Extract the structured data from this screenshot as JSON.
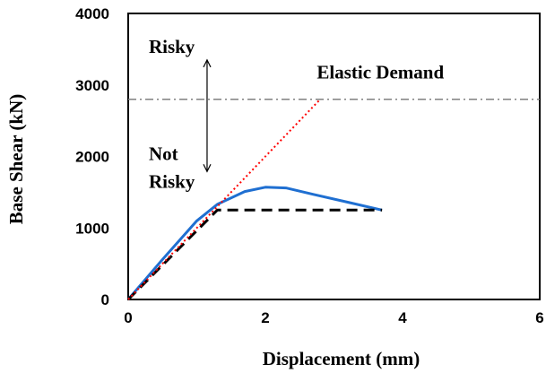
{
  "chart_data": {
    "type": "line",
    "xlabel": "Displacement (mm)",
    "ylabel": "Base Shear (kN)",
    "xlim": [
      0,
      6
    ],
    "ylim": [
      0,
      4000
    ],
    "x_ticks": [
      "0",
      "2",
      "4",
      "6"
    ],
    "y_ticks": [
      "0",
      "1000",
      "2000",
      "3000",
      "4000"
    ],
    "grid": false,
    "series": [
      {
        "color": "#1f6fd1",
        "style": "solid",
        "x": [
          0,
          0.5,
          1.0,
          1.3,
          1.7,
          2.0,
          2.3,
          2.7,
          3.2,
          3.7
        ],
        "y": [
          0,
          560,
          1100,
          1330,
          1510,
          1570,
          1560,
          1470,
          1360,
          1250
        ]
      },
      {
        "color": "#000000",
        "style": "dashed",
        "x": [
          0,
          1.3,
          3.7
        ],
        "y": [
          0,
          1250,
          1250
        ]
      },
      {
        "color": "#ff0000",
        "style": "dotted",
        "x": [
          0,
          2.8
        ],
        "y": [
          0,
          2800
        ]
      },
      {
        "color": "#808080",
        "style": "dashdot",
        "x": [
          0,
          6
        ],
        "y": [
          2800,
          2800
        ]
      }
    ],
    "annotations": [
      {
        "text": "Risky",
        "x": 0.3,
        "y": 3450
      },
      {
        "text": "Elastic Demand",
        "x": 2.75,
        "y": 3090
      },
      {
        "text": "Not",
        "x": 0.3,
        "y": 1950
      },
      {
        "text": "Risky",
        "x": 0.3,
        "y": 1560
      }
    ],
    "arrow": {
      "x": 1.15,
      "y_from": 1790,
      "y_to": 3350,
      "y_center": 2800
    }
  }
}
